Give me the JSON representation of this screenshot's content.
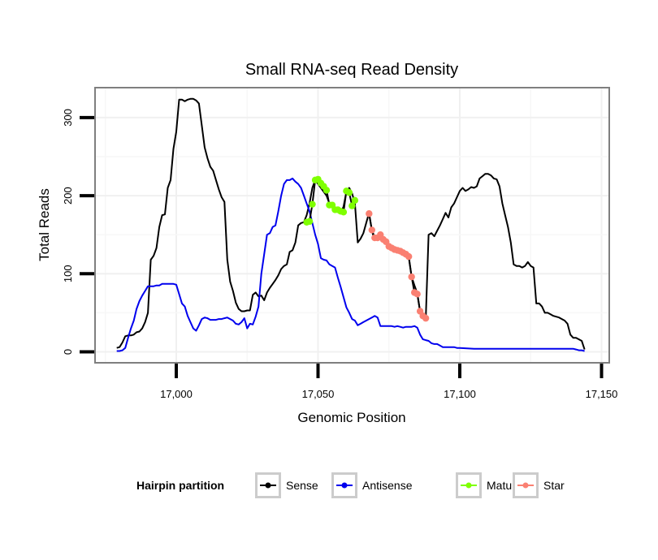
{
  "chart_data": {
    "type": "line",
    "title": "Small RNA-seq Read Density",
    "xlabel": "Genomic Position",
    "ylabel": "Total Reads",
    "xlim": [
      16975,
      17153
    ],
    "ylim": [
      -15,
      338
    ],
    "x_ticks": [
      17000,
      17050,
      17100,
      17150
    ],
    "x_tick_labels": [
      "17,000",
      "17,050",
      "17,100",
      "17,150"
    ],
    "y_ticks": [
      0,
      100,
      200,
      300
    ],
    "y_tick_labels": [
      "0",
      "100",
      "200",
      "300"
    ],
    "grid": true,
    "legend": {
      "title": "Hairpin partition",
      "position": "bottom",
      "entries": [
        {
          "name": "Sense",
          "color": "#000000"
        },
        {
          "name": "Antisense",
          "color": "#0000ee"
        },
        {
          "name": "Mature",
          "color": "#7fff00"
        },
        {
          "name": "Star",
          "color": "#fa8072"
        }
      ]
    },
    "series": [
      {
        "name": "Sense",
        "color": "#000000",
        "style": "line",
        "x": [
          16979,
          16980,
          16981,
          16982,
          16983,
          16984,
          16985,
          16986,
          16987,
          16988,
          16989,
          16990,
          16991,
          16992,
          16993,
          16994,
          16995,
          16996,
          16997,
          16998,
          16999,
          17000,
          17001,
          17002,
          17003,
          17004,
          17005,
          17006,
          17007,
          17008,
          17009,
          17010,
          17011,
          17012,
          17013,
          17014,
          17015,
          17016,
          17017,
          17018,
          17019,
          17020,
          17021,
          17022,
          17023,
          17024,
          17025,
          17026,
          17027,
          17028,
          17029,
          17030,
          17031,
          17032,
          17033,
          17034,
          17035,
          17036,
          17037,
          17038,
          17039,
          17040,
          17041,
          17042,
          17043,
          17044,
          17045,
          17046,
          17047,
          17048,
          17049,
          17050,
          17051,
          17052,
          17053,
          17054,
          17055,
          17056,
          17057,
          17058,
          17059,
          17060,
          17061,
          17062,
          17063,
          17064,
          17065,
          17066,
          17067,
          17068,
          17069,
          17070,
          17071,
          17072,
          17073,
          17074,
          17075,
          17076,
          17077,
          17078,
          17079,
          17080,
          17081,
          17082,
          17083,
          17084,
          17085,
          17086,
          17087,
          17088,
          17089,
          17090,
          17091,
          17092,
          17093,
          17094,
          17095,
          17096,
          17097,
          17098,
          17099,
          17100,
          17101,
          17102,
          17103,
          17104,
          17105,
          17106,
          17107,
          17108,
          17109,
          17110,
          17111,
          17112,
          17113,
          17114,
          17115,
          17116,
          17117,
          17118,
          17119,
          17120,
          17121,
          17122,
          17123,
          17124,
          17125,
          17126,
          17127,
          17128,
          17129,
          17130,
          17131,
          17132,
          17133,
          17134,
          17135,
          17136,
          17137,
          17138,
          17139,
          17140,
          17141,
          17142,
          17143,
          17144
        ],
        "y": [
          5,
          6,
          12,
          20,
          21,
          21,
          22,
          25,
          26,
          30,
          38,
          50,
          118,
          123,
          133,
          160,
          175,
          176,
          210,
          220,
          260,
          282,
          323,
          323,
          321,
          323,
          324,
          324,
          322,
          318,
          290,
          262,
          248,
          237,
          232,
          220,
          208,
          198,
          192,
          118,
          90,
          78,
          63,
          55,
          52,
          52,
          53,
          53,
          73,
          76,
          71,
          72,
          66,
          76,
          82,
          87,
          92,
          98,
          106,
          110,
          112,
          128,
          130,
          140,
          162,
          165,
          166,
          175,
          190,
          210,
          220,
          215,
          210,
          205,
          200,
          190,
          186,
          183,
          180,
          178,
          186,
          205,
          210,
          203,
          190,
          140,
          145,
          152,
          165,
          178,
          155,
          143,
          146,
          150,
          143,
          140,
          137,
          135,
          131,
          130,
          128,
          126,
          124,
          121,
          96,
          85,
          75,
          52,
          44,
          42,
          150,
          152,
          148,
          155,
          162,
          170,
          178,
          172,
          185,
          190,
          198,
          206,
          210,
          206,
          208,
          211,
          210,
          212,
          222,
          225,
          228,
          228,
          226,
          222,
          221,
          212,
          190,
          175,
          160,
          140,
          112,
          110,
          110,
          108,
          110,
          115,
          110,
          108,
          62,
          62,
          58,
          50,
          50,
          48,
          46,
          45,
          44,
          42,
          40,
          36,
          22,
          18,
          18,
          16,
          14,
          3
        ]
      },
      {
        "name": "Antisense",
        "color": "#0000ee",
        "style": "line",
        "x": [
          16979,
          16980,
          16981,
          16982,
          16983,
          16984,
          16985,
          16986,
          16987,
          16988,
          16989,
          16990,
          16991,
          16992,
          16993,
          16994,
          16995,
          16996,
          16997,
          16998,
          16999,
          17000,
          17001,
          17002,
          17003,
          17004,
          17005,
          17006,
          17007,
          17008,
          17009,
          17010,
          17011,
          17012,
          17013,
          17014,
          17015,
          17016,
          17017,
          17018,
          17019,
          17020,
          17021,
          17022,
          17023,
          17024,
          17025,
          17026,
          17027,
          17028,
          17029,
          17030,
          17031,
          17032,
          17033,
          17034,
          17035,
          17036,
          17037,
          17038,
          17039,
          17040,
          17041,
          17042,
          17043,
          17044,
          17045,
          17046,
          17047,
          17048,
          17049,
          17050,
          17051,
          17052,
          17053,
          17054,
          17055,
          17056,
          17057,
          17058,
          17059,
          17060,
          17061,
          17062,
          17063,
          17064,
          17065,
          17066,
          17067,
          17068,
          17069,
          17070,
          17071,
          17072,
          17073,
          17074,
          17075,
          17076,
          17077,
          17078,
          17079,
          17080,
          17081,
          17082,
          17083,
          17084,
          17085,
          17086,
          17087,
          17088,
          17089,
          17090,
          17091,
          17092,
          17093,
          17094,
          17095,
          17096,
          17097,
          17098,
          17099,
          17100,
          17105,
          17110,
          17115,
          17120,
          17125,
          17130,
          17135,
          17140,
          17141,
          17142,
          17143,
          17144
        ],
        "y": [
          1,
          1,
          2,
          5,
          18,
          30,
          40,
          55,
          65,
          72,
          78,
          84,
          84,
          84,
          85,
          85,
          87,
          87,
          87,
          87,
          87,
          86,
          74,
          62,
          58,
          46,
          38,
          30,
          27,
          34,
          42,
          44,
          43,
          41,
          41,
          41,
          42,
          42,
          43,
          44,
          42,
          40,
          36,
          35,
          38,
          43,
          30,
          36,
          35,
          45,
          58,
          100,
          125,
          150,
          152,
          160,
          162,
          180,
          200,
          215,
          220,
          220,
          222,
          218,
          215,
          210,
          200,
          190,
          180,
          165,
          150,
          138,
          120,
          118,
          117,
          112,
          110,
          108,
          95,
          83,
          70,
          57,
          50,
          42,
          40,
          34,
          36,
          38,
          40,
          42,
          44,
          46,
          44,
          33,
          33,
          33,
          33,
          33,
          32,
          33,
          32,
          31,
          32,
          32,
          32,
          33,
          31,
          22,
          16,
          15,
          14,
          11,
          10,
          10,
          8,
          6,
          6,
          6,
          6,
          6,
          5,
          5,
          4,
          4,
          4,
          4,
          4,
          4,
          4,
          4,
          3,
          2,
          2,
          1
        ]
      },
      {
        "name": "Mature",
        "color": "#7fff00",
        "style": "points",
        "x": [
          17046,
          17047,
          17048,
          17049,
          17050,
          17051,
          17052,
          17053,
          17054,
          17055,
          17056,
          17057,
          17058,
          17059,
          17060,
          17061,
          17062,
          17063
        ],
        "y": [
          166,
          167,
          189,
          220,
          221,
          216,
          212,
          207,
          188,
          188,
          182,
          182,
          180,
          179,
          206,
          204,
          187,
          194
        ]
      },
      {
        "name": "Star",
        "color": "#fa8072",
        "style": "points",
        "x": [
          17068,
          17069,
          17070,
          17071,
          17072,
          17073,
          17074,
          17075,
          17076,
          17077,
          17078,
          17079,
          17080,
          17081,
          17082,
          17083,
          17084,
          17085,
          17086,
          17087,
          17088
        ],
        "y": [
          177,
          156,
          146,
          146,
          150,
          144,
          141,
          135,
          133,
          131,
          130,
          129,
          127,
          125,
          122,
          96,
          76,
          74,
          52,
          46,
          43
        ]
      }
    ]
  }
}
